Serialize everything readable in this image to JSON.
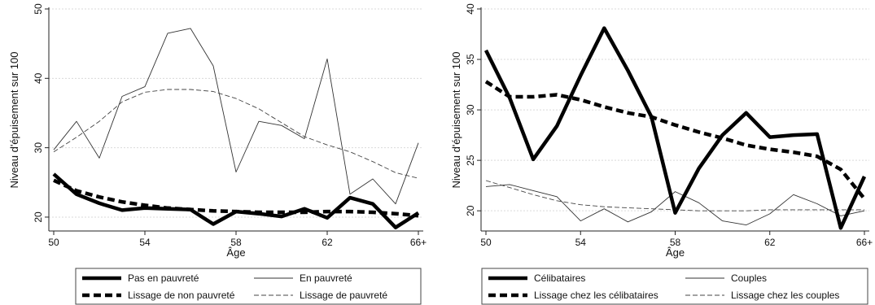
{
  "chart_data": [
    {
      "type": "line",
      "xlabel": "Âge",
      "ylabel": "Niveau d'épuisement sur 100",
      "x": [
        50,
        51,
        52,
        53,
        54,
        55,
        56,
        57,
        58,
        59,
        60,
        61,
        62,
        63,
        64,
        65,
        66
      ],
      "xticks": [
        50,
        54,
        58,
        62,
        66
      ],
      "xticklabels": [
        "50",
        "54",
        "58",
        "62",
        "66+"
      ],
      "ylim": [
        18,
        50
      ],
      "yticks": [
        20,
        30,
        40,
        50
      ],
      "grid": true,
      "legend_position": "bottom",
      "series": [
        {
          "name": "Pas en pauvreté",
          "color": "#000000",
          "style": "thick-solid",
          "values": [
            26.2,
            23.3,
            22.0,
            21.0,
            21.3,
            21.2,
            21.1,
            19.0,
            20.8,
            20.5,
            20.1,
            21.2,
            19.9,
            22.8,
            21.9,
            18.5,
            20.6
          ]
        },
        {
          "name": "En pauvreté",
          "color": "#333333",
          "style": "thin-solid",
          "values": [
            29.7,
            33.8,
            28.5,
            37.4,
            38.8,
            46.5,
            47.2,
            41.8,
            26.5,
            33.8,
            33.2,
            31.3,
            42.8,
            23.3,
            25.5,
            21.9,
            30.7
          ]
        },
        {
          "name": "Lissage de non pauvreté",
          "color": "#000000",
          "style": "thick-dashed",
          "values": [
            25.3,
            23.8,
            22.9,
            22.2,
            21.7,
            21.3,
            21.1,
            20.9,
            20.8,
            20.7,
            20.7,
            20.7,
            20.8,
            20.8,
            20.7,
            20.5,
            20.2
          ]
        },
        {
          "name": "Lissage de pauvreté",
          "color": "#444444",
          "style": "thin-dashed",
          "values": [
            29.4,
            31.5,
            33.8,
            36.6,
            38.0,
            38.4,
            38.4,
            38.1,
            37.1,
            35.6,
            33.6,
            31.6,
            30.4,
            29.4,
            28.0,
            26.4,
            25.6
          ]
        }
      ]
    },
    {
      "type": "line",
      "xlabel": "Âge",
      "ylabel": "Niveau d'épuisement sur 100",
      "x": [
        50,
        51,
        52,
        53,
        54,
        55,
        56,
        57,
        58,
        59,
        60,
        61,
        62,
        63,
        64,
        65,
        66
      ],
      "xticks": [
        50,
        54,
        58,
        62,
        66
      ],
      "xticklabels": [
        "50",
        "54",
        "58",
        "62",
        "66+"
      ],
      "ylim": [
        18,
        40
      ],
      "yticks": [
        20,
        25,
        30,
        35,
        40
      ],
      "grid": true,
      "legend_position": "bottom",
      "series": [
        {
          "name": "Célibataires",
          "color": "#000000",
          "style": "thick-solid",
          "values": [
            35.9,
            31.2,
            25.1,
            28.4,
            33.4,
            38.1,
            33.9,
            29.3,
            19.8,
            24.2,
            27.5,
            29.7,
            27.3,
            27.5,
            27.6,
            18.3,
            23.4
          ]
        },
        {
          "name": "Couples",
          "color": "#333333",
          "style": "thin-solid",
          "values": [
            22.4,
            22.6,
            22.0,
            21.4,
            19.0,
            20.2,
            18.9,
            19.9,
            21.9,
            20.8,
            19.0,
            18.6,
            19.7,
            21.6,
            20.7,
            19.5,
            20.0
          ]
        },
        {
          "name": "Lissage chez les célibataires",
          "color": "#000000",
          "style": "thick-dashed",
          "values": [
            32.8,
            31.3,
            31.3,
            31.5,
            31.0,
            30.3,
            29.7,
            29.3,
            28.5,
            27.8,
            27.2,
            26.5,
            26.1,
            25.8,
            25.4,
            24.1,
            21.2
          ]
        },
        {
          "name": "Lissage chez les couples",
          "color": "#444444",
          "style": "thin-dashed",
          "values": [
            23.0,
            22.3,
            21.6,
            21.0,
            20.6,
            20.4,
            20.3,
            20.2,
            20.1,
            20.0,
            20.0,
            20.0,
            20.1,
            20.1,
            20.1,
            20.1,
            20.1
          ]
        }
      ]
    }
  ]
}
